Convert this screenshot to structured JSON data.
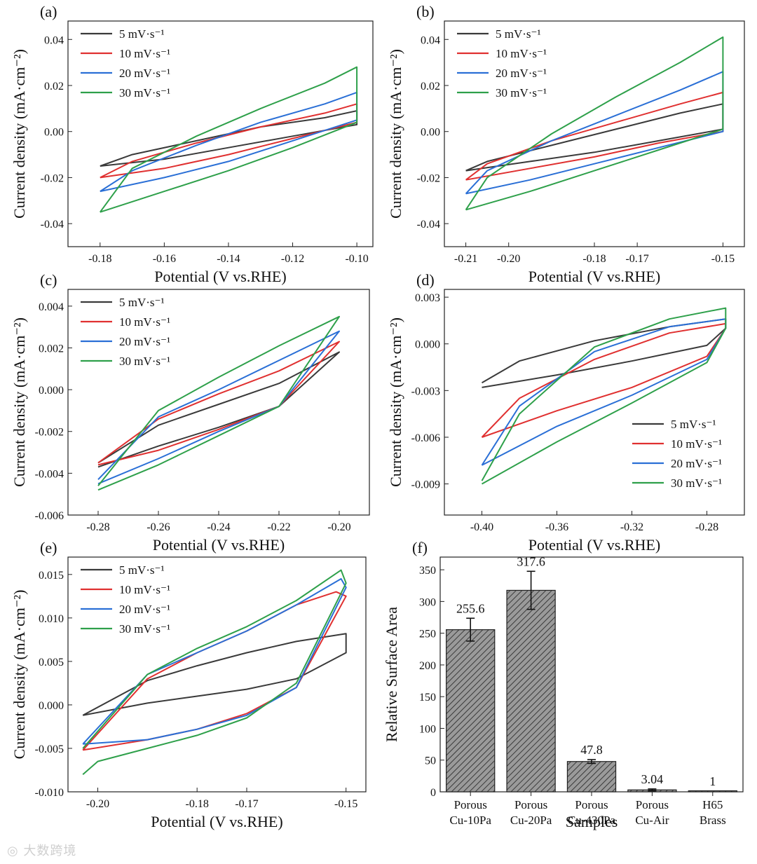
{
  "chart_data": [
    {
      "panel": "(a)",
      "type": "line",
      "xlabel": "Potential (V vs.RHE)",
      "ylabel": "Current density (mA·cm⁻²)",
      "xlim": [
        -0.19,
        -0.095
      ],
      "ylim": [
        -0.05,
        0.048
      ],
      "xticks": [
        -0.18,
        -0.16,
        -0.14,
        -0.12,
        -0.1
      ],
      "xtick_labels": [
        "-0.18",
        "-0.16",
        "-0.14",
        "-0.12",
        "-0.10"
      ],
      "yticks": [
        -0.04,
        -0.02,
        0.0,
        0.02,
        0.04
      ],
      "ytick_labels": [
        "-0.04",
        "-0.02",
        "0.00",
        "0.02",
        "0.04"
      ],
      "legend_position": "top-left",
      "series": [
        {
          "name": "5 mV·s⁻¹",
          "color": "#3a3a3a",
          "x": [
            -0.18,
            -0.16,
            -0.14,
            -0.12,
            -0.1,
            -0.1,
            -0.11,
            -0.13,
            -0.15,
            -0.17,
            -0.18
          ],
          "y": [
            -0.015,
            -0.012,
            -0.007,
            -0.002,
            0.003,
            0.009,
            0.006,
            0.002,
            -0.004,
            -0.01,
            -0.015
          ]
        },
        {
          "name": "10 mV·s⁻¹",
          "color": "#e03030",
          "x": [
            -0.18,
            -0.16,
            -0.14,
            -0.12,
            -0.1,
            -0.1,
            -0.11,
            -0.13,
            -0.15,
            -0.17,
            -0.18
          ],
          "y": [
            -0.02,
            -0.016,
            -0.01,
            -0.003,
            0.004,
            0.012,
            0.008,
            0.002,
            -0.005,
            -0.013,
            -0.02
          ]
        },
        {
          "name": "20 mV·s⁻¹",
          "color": "#2a6fd6",
          "x": [
            -0.18,
            -0.16,
            -0.14,
            -0.12,
            -0.1,
            -0.1,
            -0.11,
            -0.13,
            -0.15,
            -0.17,
            -0.18
          ],
          "y": [
            -0.026,
            -0.02,
            -0.013,
            -0.004,
            0.005,
            0.017,
            0.012,
            0.004,
            -0.006,
            -0.017,
            -0.026
          ]
        },
        {
          "name": "30 mV·s⁻¹",
          "color": "#2ea04a",
          "x": [
            -0.18,
            -0.16,
            -0.14,
            -0.12,
            -0.1,
            -0.1,
            -0.11,
            -0.13,
            -0.15,
            -0.17,
            -0.18
          ],
          "y": [
            -0.035,
            -0.026,
            -0.017,
            -0.007,
            0.004,
            0.028,
            0.021,
            0.01,
            -0.002,
            -0.016,
            -0.035
          ]
        }
      ]
    },
    {
      "panel": "(b)",
      "type": "line",
      "xlabel": "Potential (V vs.RHE)",
      "ylabel": "Current density (mA·cm⁻²)",
      "xlim": [
        -0.215,
        -0.145
      ],
      "ylim": [
        -0.05,
        0.048
      ],
      "xticks": [
        -0.21,
        -0.2,
        -0.18,
        -0.17,
        -0.15
      ],
      "xtick_labels": [
        "-0.21",
        "-0.20",
        "-0.18",
        "-0.17",
        "-0.15"
      ],
      "yticks": [
        -0.04,
        -0.02,
        0.0,
        0.02,
        0.04
      ],
      "ytick_labels": [
        "-0.04",
        "-0.02",
        "0.00",
        "0.02",
        "0.04"
      ],
      "legend_position": "top-left",
      "series": [
        {
          "name": "5 mV·s⁻¹",
          "color": "#3a3a3a",
          "x": [
            -0.21,
            -0.195,
            -0.18,
            -0.165,
            -0.15,
            -0.15,
            -0.16,
            -0.175,
            -0.19,
            -0.205,
            -0.21
          ],
          "y": [
            -0.017,
            -0.013,
            -0.009,
            -0.004,
            0.001,
            0.012,
            0.008,
            0.001,
            -0.006,
            -0.013,
            -0.017
          ]
        },
        {
          "name": "10 mV·s⁻¹",
          "color": "#e03030",
          "x": [
            -0.21,
            -0.195,
            -0.18,
            -0.165,
            -0.15,
            -0.15,
            -0.16,
            -0.175,
            -0.19,
            -0.205,
            -0.21
          ],
          "y": [
            -0.021,
            -0.016,
            -0.011,
            -0.005,
            0.0,
            0.017,
            0.012,
            0.004,
            -0.004,
            -0.014,
            -0.021
          ]
        },
        {
          "name": "20 mV·s⁻¹",
          "color": "#2a6fd6",
          "x": [
            -0.21,
            -0.195,
            -0.18,
            -0.165,
            -0.15,
            -0.15,
            -0.16,
            -0.175,
            -0.19,
            -0.205,
            -0.21
          ],
          "y": [
            -0.027,
            -0.021,
            -0.014,
            -0.007,
            0.0,
            0.026,
            0.018,
            0.007,
            -0.004,
            -0.017,
            -0.027
          ]
        },
        {
          "name": "30 mV·s⁻¹",
          "color": "#2ea04a",
          "x": [
            -0.21,
            -0.195,
            -0.18,
            -0.165,
            -0.15,
            -0.15,
            -0.16,
            -0.175,
            -0.19,
            -0.205,
            -0.21
          ],
          "y": [
            -0.034,
            -0.026,
            -0.017,
            -0.008,
            0.001,
            0.041,
            0.03,
            0.015,
            -0.001,
            -0.02,
            -0.034
          ]
        }
      ]
    },
    {
      "panel": "(c)",
      "type": "line",
      "xlabel": "Potential (V vs.RHE)",
      "ylabel": "Current density (mA·cm⁻²)",
      "xlim": [
        -0.29,
        -0.19
      ],
      "ylim": [
        -0.006,
        0.0048
      ],
      "xticks": [
        -0.28,
        -0.26,
        -0.24,
        -0.22,
        -0.2
      ],
      "xtick_labels": [
        "-0.28",
        "-0.26",
        "-0.24",
        "-0.22",
        "-0.20"
      ],
      "yticks": [
        -0.006,
        -0.004,
        -0.002,
        0.0,
        0.002,
        0.004
      ],
      "ytick_labels": [
        "-0.006",
        "-0.004",
        "-0.002",
        "0.000",
        "0.002",
        "0.004"
      ],
      "legend_position": "top-left",
      "series": [
        {
          "name": "5 mV·s⁻¹",
          "color": "#3a3a3a",
          "x": [
            -0.28,
            -0.26,
            -0.24,
            -0.22,
            -0.2,
            -0.2,
            -0.22,
            -0.24,
            -0.26,
            -0.28
          ],
          "y": [
            -0.0037,
            -0.0027,
            -0.0018,
            -0.0008,
            0.0018,
            0.0018,
            0.0003,
            -0.0007,
            -0.0017,
            -0.0035
          ]
        },
        {
          "name": "10 mV·s⁻¹",
          "color": "#e03030",
          "x": [
            -0.28,
            -0.26,
            -0.24,
            -0.22,
            -0.2,
            -0.2,
            -0.22,
            -0.24,
            -0.26,
            -0.28
          ],
          "y": [
            -0.0036,
            -0.0029,
            -0.0019,
            -0.0008,
            0.0023,
            0.0023,
            0.0009,
            -0.0002,
            -0.0014,
            -0.0035
          ]
        },
        {
          "name": "20 mV·s⁻¹",
          "color": "#2a6fd6",
          "x": [
            -0.28,
            -0.26,
            -0.24,
            -0.22,
            -0.2,
            -0.2,
            -0.22,
            -0.24,
            -0.26,
            -0.28
          ],
          "y": [
            -0.0045,
            -0.0033,
            -0.002,
            -0.0008,
            0.0028,
            0.0028,
            0.0014,
            0.0,
            -0.0013,
            -0.0043
          ]
        },
        {
          "name": "30 mV·s⁻¹",
          "color": "#2ea04a",
          "x": [
            -0.28,
            -0.26,
            -0.24,
            -0.22,
            -0.2,
            -0.2,
            -0.22,
            -0.24,
            -0.26,
            -0.28
          ],
          "y": [
            -0.0048,
            -0.0036,
            -0.0022,
            -0.0008,
            0.0035,
            0.0035,
            0.0021,
            0.0006,
            -0.001,
            -0.0046
          ]
        }
      ]
    },
    {
      "panel": "(d)",
      "type": "line",
      "xlabel": "Potential (V vs.RHE)",
      "ylabel": "Current density (mA·cm⁻²)",
      "xlim": [
        -0.42,
        -0.26
      ],
      "ylim": [
        -0.011,
        0.0035
      ],
      "xticks": [
        -0.4,
        -0.36,
        -0.32,
        -0.28
      ],
      "xtick_labels": [
        "-0.40",
        "-0.36",
        "-0.32",
        "-0.28"
      ],
      "yticks": [
        -0.009,
        -0.006,
        -0.003,
        0.0,
        0.003
      ],
      "ytick_labels": [
        "-0.009",
        "-0.006",
        "-0.003",
        "0.000",
        "0.003"
      ],
      "legend_position": "bottom-right",
      "series": [
        {
          "name": "5 mV·s⁻¹",
          "color": "#3a3a3a",
          "x": [
            -0.4,
            -0.36,
            -0.32,
            -0.28,
            -0.27,
            -0.27,
            -0.3,
            -0.34,
            -0.38,
            -0.4
          ],
          "y": [
            -0.0028,
            -0.002,
            -0.0011,
            -0.0001,
            0.001,
            0.0016,
            0.0011,
            0.0002,
            -0.0011,
            -0.0025
          ]
        },
        {
          "name": "10 mV·s⁻¹",
          "color": "#e03030",
          "x": [
            -0.4,
            -0.36,
            -0.32,
            -0.28,
            -0.27,
            -0.27,
            -0.3,
            -0.34,
            -0.38,
            -0.4
          ],
          "y": [
            -0.006,
            -0.0043,
            -0.0028,
            -0.0008,
            0.001,
            0.0013,
            0.0007,
            -0.001,
            -0.0035,
            -0.006
          ]
        },
        {
          "name": "20 mV·s⁻¹",
          "color": "#2a6fd6",
          "x": [
            -0.4,
            -0.36,
            -0.32,
            -0.28,
            -0.27,
            -0.27,
            -0.3,
            -0.34,
            -0.38,
            -0.4
          ],
          "y": [
            -0.0078,
            -0.0053,
            -0.0033,
            -0.001,
            0.001,
            0.0016,
            0.0011,
            -0.0005,
            -0.004,
            -0.0078
          ]
        },
        {
          "name": "30 mV·s⁻¹",
          "color": "#2ea04a",
          "x": [
            -0.4,
            -0.36,
            -0.32,
            -0.28,
            -0.27,
            -0.27,
            -0.3,
            -0.34,
            -0.38,
            -0.4
          ],
          "y": [
            -0.009,
            -0.0063,
            -0.0038,
            -0.0012,
            0.001,
            0.0023,
            0.0016,
            -0.0002,
            -0.0045,
            -0.0088
          ]
        }
      ]
    },
    {
      "panel": "(e)",
      "type": "line",
      "xlabel": "Potential (V vs.RHE)",
      "ylabel": "Current density (mA·cm⁻²)",
      "xlim": [
        -0.206,
        -0.146
      ],
      "ylim": [
        -0.01,
        0.017
      ],
      "xticks": [
        -0.2,
        -0.18,
        -0.17,
        -0.15
      ],
      "xtick_labels": [
        "-0.20",
        "-0.18",
        "-0.17",
        "-0.15"
      ],
      "yticks": [
        -0.01,
        -0.005,
        0.0,
        0.005,
        0.01,
        0.015
      ],
      "ytick_labels": [
        "-0.010",
        "-0.005",
        "0.000",
        "0.005",
        "0.010",
        "0.015"
      ],
      "legend_position": "top-left",
      "series": [
        {
          "name": "5 mV·s⁻¹",
          "color": "#3a3a3a",
          "x": [
            -0.203,
            -0.19,
            -0.18,
            -0.17,
            -0.16,
            -0.15,
            -0.15,
            -0.16,
            -0.17,
            -0.18,
            -0.19,
            -0.203
          ],
          "y": [
            -0.0012,
            0.0002,
            0.001,
            0.0018,
            0.003,
            0.006,
            0.0082,
            0.0073,
            0.006,
            0.0045,
            0.0028,
            -0.0012
          ]
        },
        {
          "name": "10 mV·s⁻¹",
          "color": "#e03030",
          "x": [
            -0.203,
            -0.19,
            -0.18,
            -0.17,
            -0.16,
            -0.15,
            -0.152,
            -0.16,
            -0.17,
            -0.18,
            -0.19,
            -0.203
          ],
          "y": [
            -0.0052,
            -0.004,
            -0.0028,
            -0.001,
            0.002,
            0.0125,
            0.013,
            0.0115,
            0.0085,
            0.006,
            0.003,
            -0.0052
          ]
        },
        {
          "name": "20 mV·s⁻¹",
          "color": "#2a6fd6",
          "x": [
            -0.203,
            -0.19,
            -0.18,
            -0.17,
            -0.16,
            -0.15,
            -0.151,
            -0.16,
            -0.17,
            -0.18,
            -0.19,
            -0.203
          ],
          "y": [
            -0.0045,
            -0.004,
            -0.0028,
            -0.0012,
            0.002,
            0.0135,
            0.0145,
            0.0115,
            0.0085,
            0.006,
            0.0035,
            -0.0045
          ]
        },
        {
          "name": "30 mV·s⁻¹",
          "color": "#2ea04a",
          "x": [
            -0.203,
            -0.2,
            -0.19,
            -0.18,
            -0.17,
            -0.16,
            -0.15,
            -0.151,
            -0.16,
            -0.17,
            -0.18,
            -0.19,
            -0.203
          ],
          "y": [
            -0.008,
            -0.0065,
            -0.005,
            -0.0035,
            -0.0015,
            0.0025,
            0.014,
            0.0155,
            0.012,
            0.009,
            0.0065,
            0.0035,
            -0.005
          ]
        }
      ]
    },
    {
      "panel": "(f)",
      "type": "bar",
      "xlabel": "Samples",
      "ylabel": "Relative Surface Area",
      "ylim": [
        0,
        370
      ],
      "yticks": [
        0,
        50,
        100,
        150,
        200,
        250,
        300,
        350
      ],
      "ytick_labels": [
        "0",
        "50",
        "100",
        "150",
        "200",
        "250",
        "300",
        "350"
      ],
      "categories": [
        "Porous Cu-10Pa",
        "Porous Cu-20Pa",
        "Porous Cu-430Pa",
        "Porous Cu-Air",
        "H65 Brass"
      ],
      "category_lines": [
        [
          "Porous",
          "Cu-10Pa"
        ],
        [
          "Porous",
          "Cu-20Pa"
        ],
        [
          "Porous",
          "Cu-430Pa"
        ],
        [
          "Porous",
          "Cu-Air"
        ],
        [
          "H65",
          "Brass"
        ]
      ],
      "values": [
        255.6,
        317.6,
        47.8,
        3.04,
        1
      ],
      "value_labels": [
        "255.6",
        "317.6",
        "47.8",
        "3.04",
        "1"
      ],
      "errors": [
        18,
        30,
        3,
        1.5,
        0
      ]
    }
  ]
}
